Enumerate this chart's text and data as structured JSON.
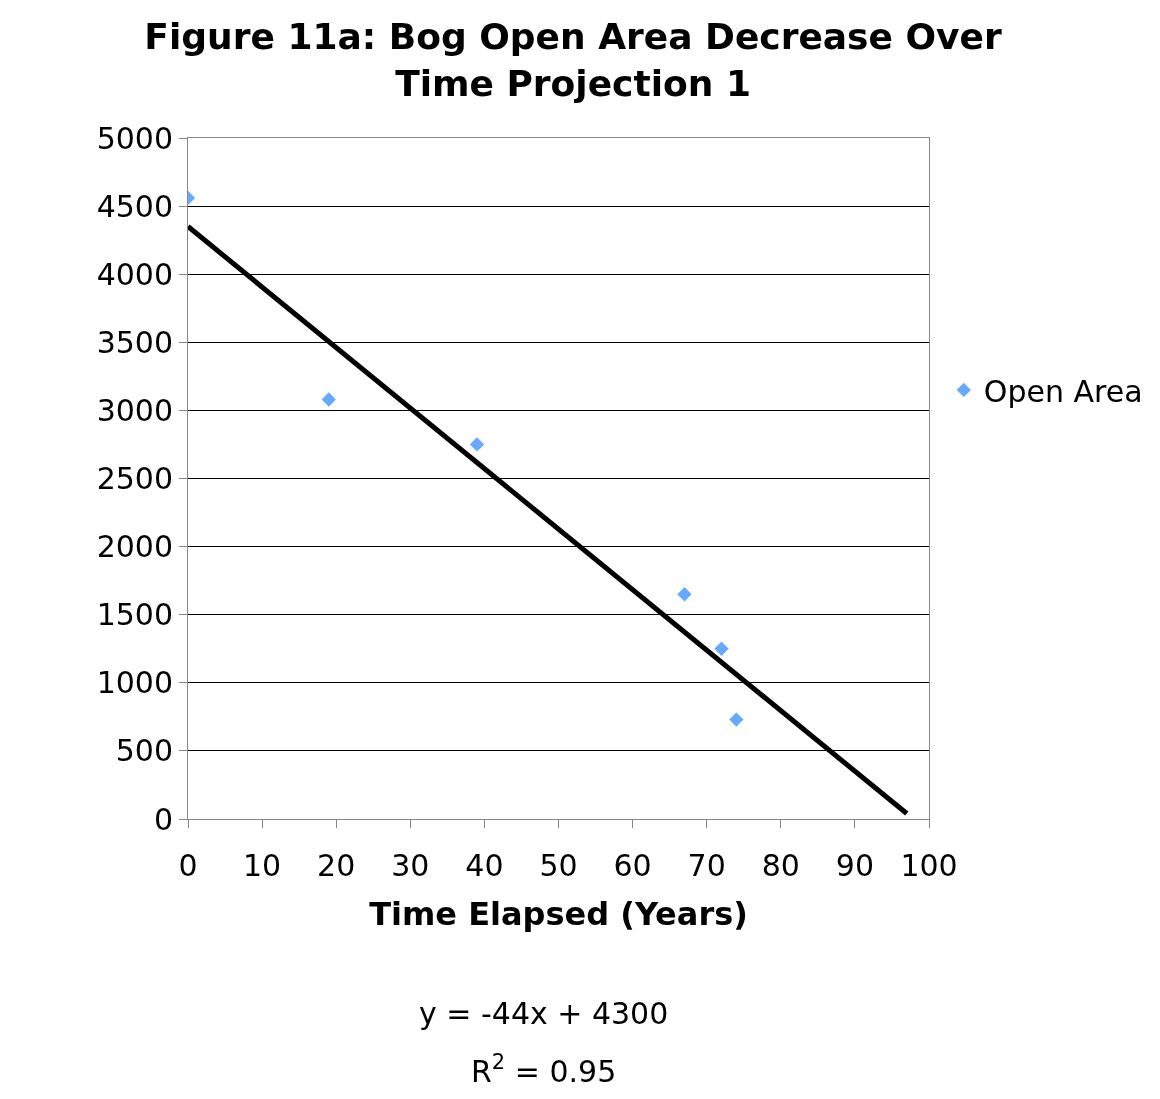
{
  "chart_data": {
    "type": "scatter",
    "title": "Figure 11a: Bog Open Area Decrease Over Time Projection 1",
    "xlabel": "Time Elapsed (Years)",
    "annotations": [
      "y = -44x + 4300",
      "R$^{2}$ = 0.95"
    ],
    "series": [
      {
        "name": "Open Area",
        "color": "#66aaff",
        "marker": "diamond",
        "x": [
          0,
          19,
          39,
          67,
          72,
          74
        ],
        "values": [
          4560,
          3080,
          2750,
          1650,
          1250,
          730
        ]
      },
      {
        "type": "line",
        "color": "#000000",
        "marker": "none",
        "line_style": "solid",
        "x": [
          0,
          97
        ],
        "values": [
          4350,
          40
        ]
      }
    ],
    "xlim": [
      0,
      100
    ],
    "xticks": [
      0,
      10,
      20,
      30,
      40,
      50,
      60,
      70,
      80,
      90,
      100
    ],
    "ylim": [
      0,
      5000
    ],
    "yticks": [
      0,
      500,
      1000,
      1500,
      2000,
      2500,
      3000,
      3500,
      4000,
      4500,
      5000
    ],
    "grid": "y",
    "legend": "right"
  }
}
